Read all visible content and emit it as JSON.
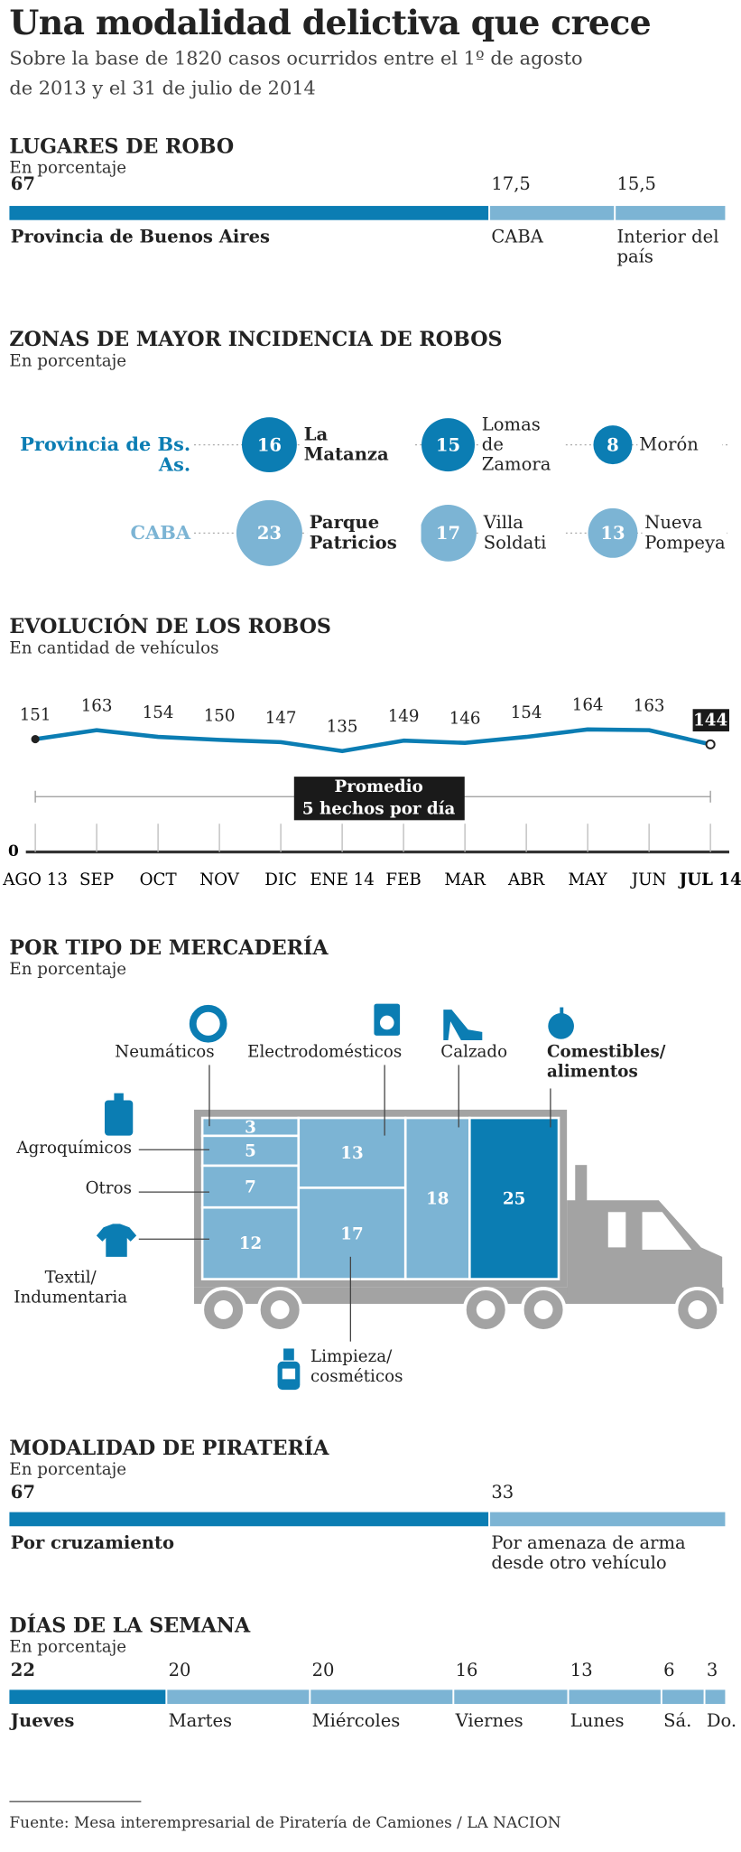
{
  "header": {
    "title": "Una modalidad delictiva que crece",
    "subtitle": "Sobre la base de 1820 casos ocurridos entre el 1º de agosto de 2013 y el 31 de julio de 2014"
  },
  "chart_data": [
    {
      "type": "stacked-bar",
      "title": "LUGARES DE ROBO",
      "subtitle": "En porcentaje",
      "categories": [
        "Provincia de Buenos Aires",
        "CABA",
        "Interior del país"
      ],
      "values": [
        67,
        17.5,
        15.5
      ],
      "value_labels": [
        "67",
        "17,5",
        "15,5"
      ],
      "colors": [
        "#0b7db3",
        "#7cb4d4",
        "#7cb4d4"
      ],
      "xlim": [
        0,
        100
      ]
    },
    {
      "type": "bubble-rows",
      "title": "ZONAS DE MAYOR INCIDENCIA DE ROBOS",
      "subtitle": "En porcentaje",
      "series": [
        {
          "name": "Provincia de Bs. As.",
          "color": "#0b7db3",
          "categories": [
            "La Matanza",
            "Lomas de Zamora",
            "Morón"
          ],
          "values": [
            16,
            15,
            8
          ]
        },
        {
          "name": "CABA",
          "color": "#7cb4d4",
          "categories": [
            "Parque Patricios",
            "Villa Soldati",
            "Nueva Pompeya"
          ],
          "values": [
            23,
            17,
            13
          ]
        }
      ]
    },
    {
      "type": "line",
      "title": "EVOLUCIÓN DE LOS ROBOS",
      "subtitle": "En cantidad de vehículos",
      "categories": [
        "AGO 13",
        "SEP",
        "OCT",
        "NOV",
        "DIC",
        "ENE 14",
        "FEB",
        "MAR",
        "ABR",
        "MAY",
        "JUN",
        "JUL 14"
      ],
      "values": [
        151,
        163,
        154,
        150,
        147,
        135,
        149,
        146,
        154,
        164,
        163,
        144
      ],
      "color": "#0b7db3",
      "ylim": [
        0,
        200
      ],
      "yticks": [
        0
      ],
      "annotation": [
        "Promedio",
        "5 hechos por día"
      ]
    },
    {
      "type": "treemap",
      "title": "POR TIPO DE MERCADERÍA",
      "subtitle": "En porcentaje",
      "categories": [
        "Neumáticos",
        "Agroquímicos",
        "Otros",
        "Textil/ Indumentaria",
        "Electrodomésticos",
        "Limpieza/ cosméticos",
        "Calzado",
        "Comestibles/ alimentos"
      ],
      "values": [
        3,
        5,
        7,
        12,
        13,
        17,
        18,
        25
      ],
      "colors": [
        "#7cb4d4",
        "#7cb4d4",
        "#7cb4d4",
        "#7cb4d4",
        "#7cb4d4",
        "#7cb4d4",
        "#7cb4d4",
        "#0b7db3"
      ]
    },
    {
      "type": "stacked-bar",
      "title": "MODALIDAD DE PIRATERÍA",
      "subtitle": "En porcentaje",
      "categories": [
        "Por cruzamiento",
        "Por amenaza de arma desde otro vehículo"
      ],
      "values": [
        67,
        33
      ],
      "colors": [
        "#0b7db3",
        "#7cb4d4"
      ],
      "xlim": [
        0,
        100
      ]
    },
    {
      "type": "stacked-bar",
      "title": "DÍAS DE LA SEMANA",
      "subtitle": "En porcentaje",
      "categories": [
        "Jueves",
        "Martes",
        "Miércoles",
        "Viernes",
        "Lunes",
        "Sá.",
        "Do."
      ],
      "values": [
        22,
        20,
        20,
        16,
        13,
        6,
        3
      ],
      "colors": [
        "#0b7db3",
        "#7cb4d4",
        "#7cb4d4",
        "#7cb4d4",
        "#7cb4d4",
        "#7cb4d4",
        "#7cb4d4"
      ],
      "xlim": [
        0,
        100
      ]
    }
  ],
  "source": "Fuente: Mesa interempresarial de Piratería de Camiones / LA NACION"
}
